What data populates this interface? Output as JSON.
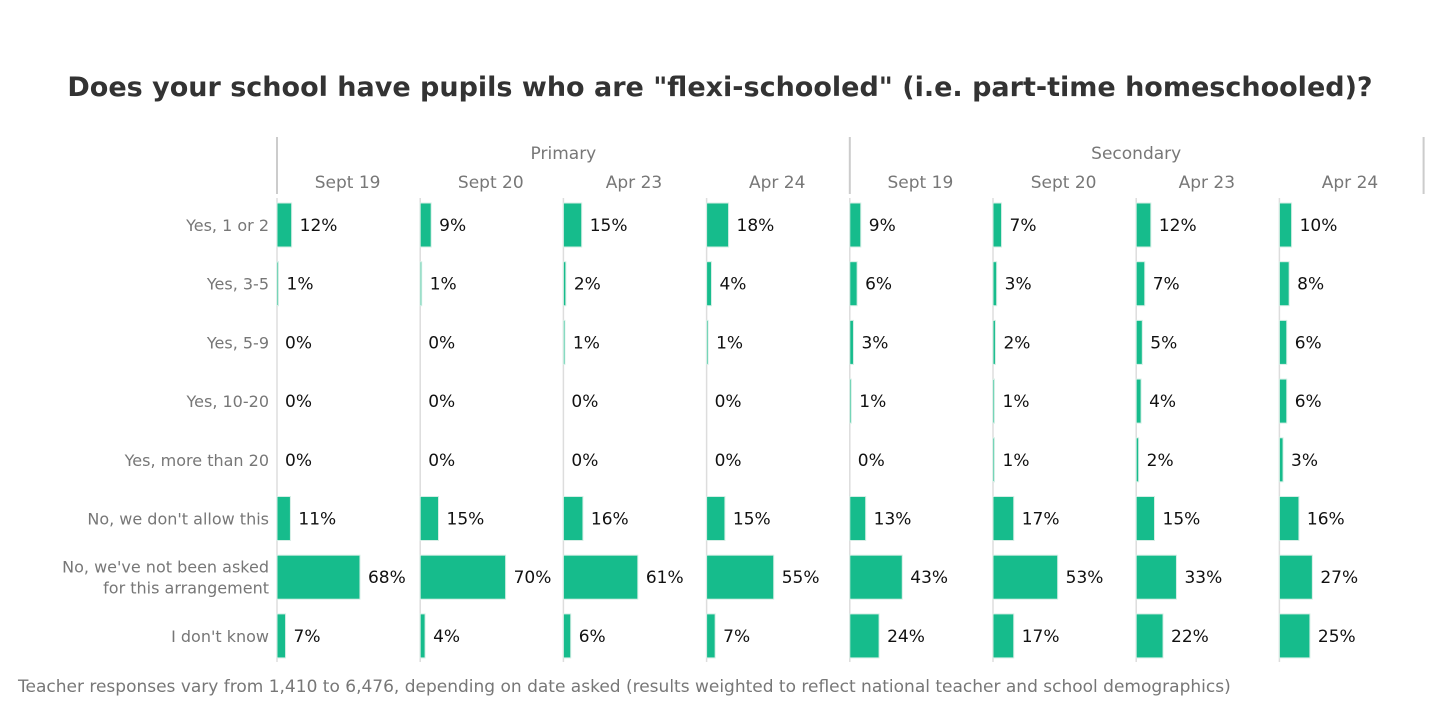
{
  "chart_data": {
    "type": "bar",
    "orientation": "horizontal",
    "title": "Does your school have pupils who are \"flexi-schooled\" (i.e. part-time homeschooled)?",
    "footnote": "Teacher responses vary from 1,410 to 6,476, depending on date asked (results weighted to reflect national teacher and school demographics)",
    "categories": [
      "Yes, 1 or 2",
      "Yes, 3-5",
      "Yes, 5-9",
      "Yes, 10-20",
      "Yes, more than 20",
      "No, we don't allow this",
      "No, we've not been asked for this arrangement",
      "I don't know"
    ],
    "category_lines": [
      [
        "Yes, 1 or 2"
      ],
      [
        "Yes, 3-5"
      ],
      [
        "Yes, 5-9"
      ],
      [
        "Yes, 10-20"
      ],
      [
        "Yes, more than 20"
      ],
      [
        "No, we don't allow this"
      ],
      [
        "No, we've not been asked",
        "for this arrangement"
      ],
      [
        "I don't know"
      ]
    ],
    "groups": [
      {
        "name": "Primary",
        "series": [
          {
            "name": "Sept 19",
            "values": [
              12,
              1,
              0,
              0,
              0,
              11,
              68,
              7
            ]
          },
          {
            "name": "Sept 20",
            "values": [
              9,
              1,
              0,
              0,
              0,
              15,
              70,
              4
            ]
          },
          {
            "name": "Apr 23",
            "values": [
              15,
              2,
              1,
              0,
              0,
              16,
              61,
              6
            ]
          },
          {
            "name": "Apr 24",
            "values": [
              18,
              4,
              1,
              0,
              0,
              15,
              55,
              7
            ]
          }
        ]
      },
      {
        "name": "Secondary",
        "series": [
          {
            "name": "Sept 19",
            "values": [
              9,
              6,
              3,
              1,
              0,
              13,
              43,
              24
            ]
          },
          {
            "name": "Sept 20",
            "values": [
              7,
              3,
              2,
              1,
              1,
              17,
              53,
              17
            ]
          },
          {
            "name": "Apr 23",
            "values": [
              12,
              7,
              5,
              4,
              2,
              15,
              33,
              22
            ]
          },
          {
            "name": "Apr 24",
            "values": [
              10,
              8,
              6,
              6,
              3,
              16,
              27,
              25
            ]
          }
        ]
      }
    ],
    "value_suffix": "%",
    "xlim": [
      0,
      100
    ],
    "bar_color": "#16BC8C",
    "axis_color": "#CCCCCC"
  }
}
